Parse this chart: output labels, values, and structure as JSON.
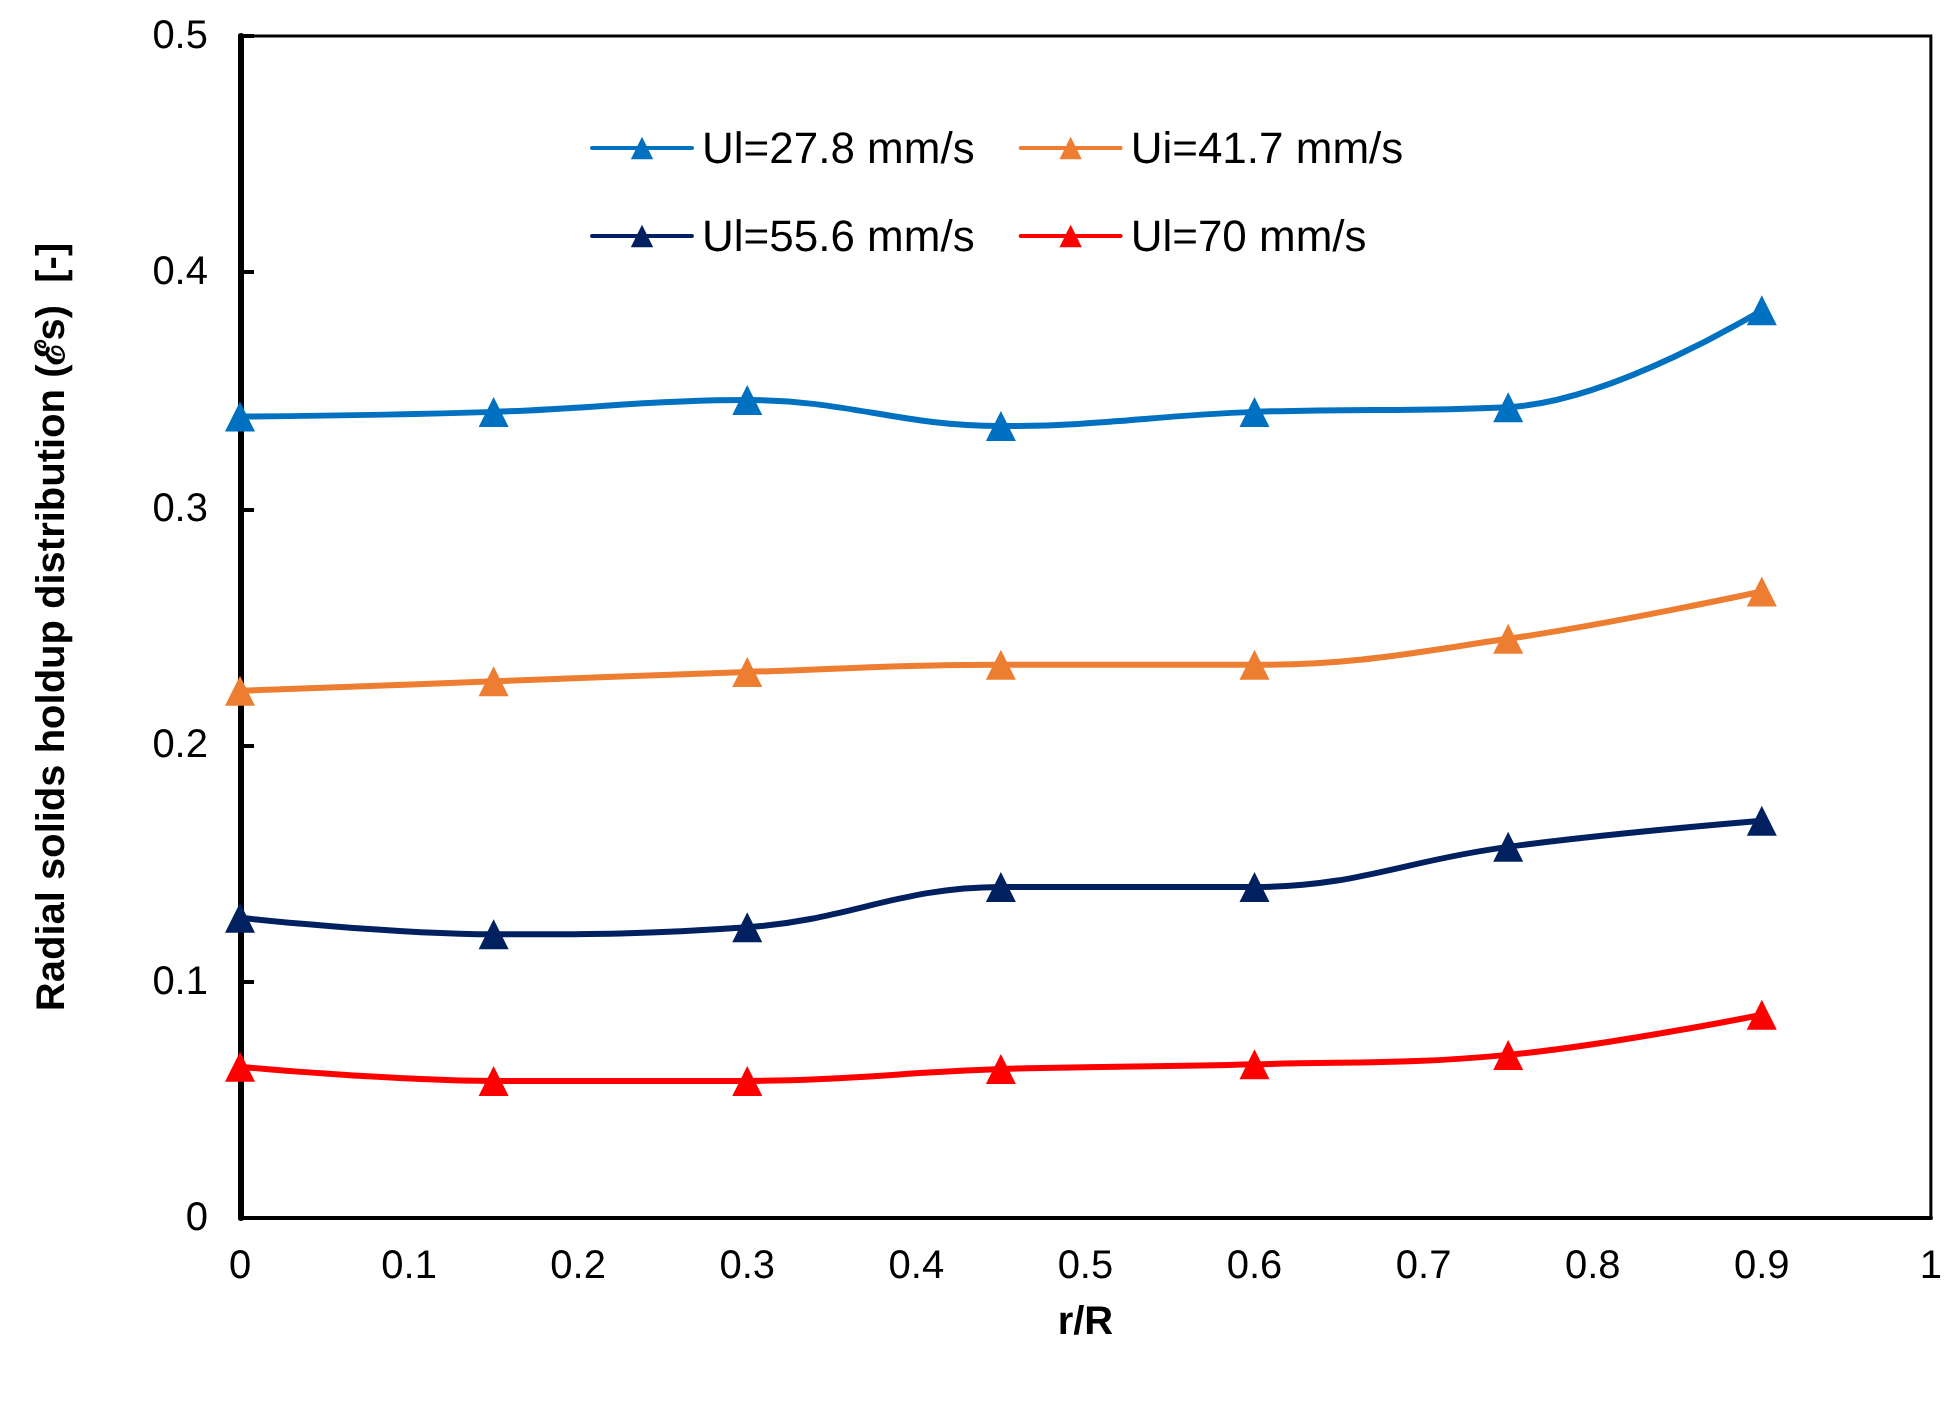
{
  "chart_data": {
    "type": "line",
    "xlabel": "r/R",
    "ylabel": "Radial solids holdup distribution (ℰs)  [-]",
    "x": [
      0,
      0.15,
      0.3,
      0.45,
      0.6,
      0.75,
      0.9
    ],
    "series": [
      {
        "name": "Ul=27.8 mm/s",
        "color": "#0070c0",
        "values": [
          0.339,
          0.341,
          0.346,
          0.335,
          0.341,
          0.343,
          0.384
        ]
      },
      {
        "name": "Ui=41.7 mm/s",
        "color": "#ed7d31",
        "values": [
          0.223,
          0.227,
          0.231,
          0.234,
          0.234,
          0.245,
          0.265
        ]
      },
      {
        "name": "Ul=55.6 mm/s",
        "color": "#002060",
        "values": [
          0.127,
          0.12,
          0.123,
          0.14,
          0.14,
          0.157,
          0.168
        ]
      },
      {
        "name": "Ul=70 mm/s",
        "color": "#ff0000",
        "values": [
          0.064,
          0.058,
          0.058,
          0.063,
          0.065,
          0.069,
          0.086
        ]
      }
    ],
    "xlim": [
      0,
      1
    ],
    "xticks": [
      0,
      0.1,
      0.2,
      0.3,
      0.4,
      0.5,
      0.6,
      0.7,
      0.8,
      0.9,
      1
    ],
    "ylim": [
      0,
      0.5
    ],
    "yticks": [
      0,
      0.1,
      0.2,
      0.3,
      0.4,
      0.5
    ],
    "grid": false,
    "legend": "top",
    "marker": "triangle",
    "line_style": "solid"
  }
}
